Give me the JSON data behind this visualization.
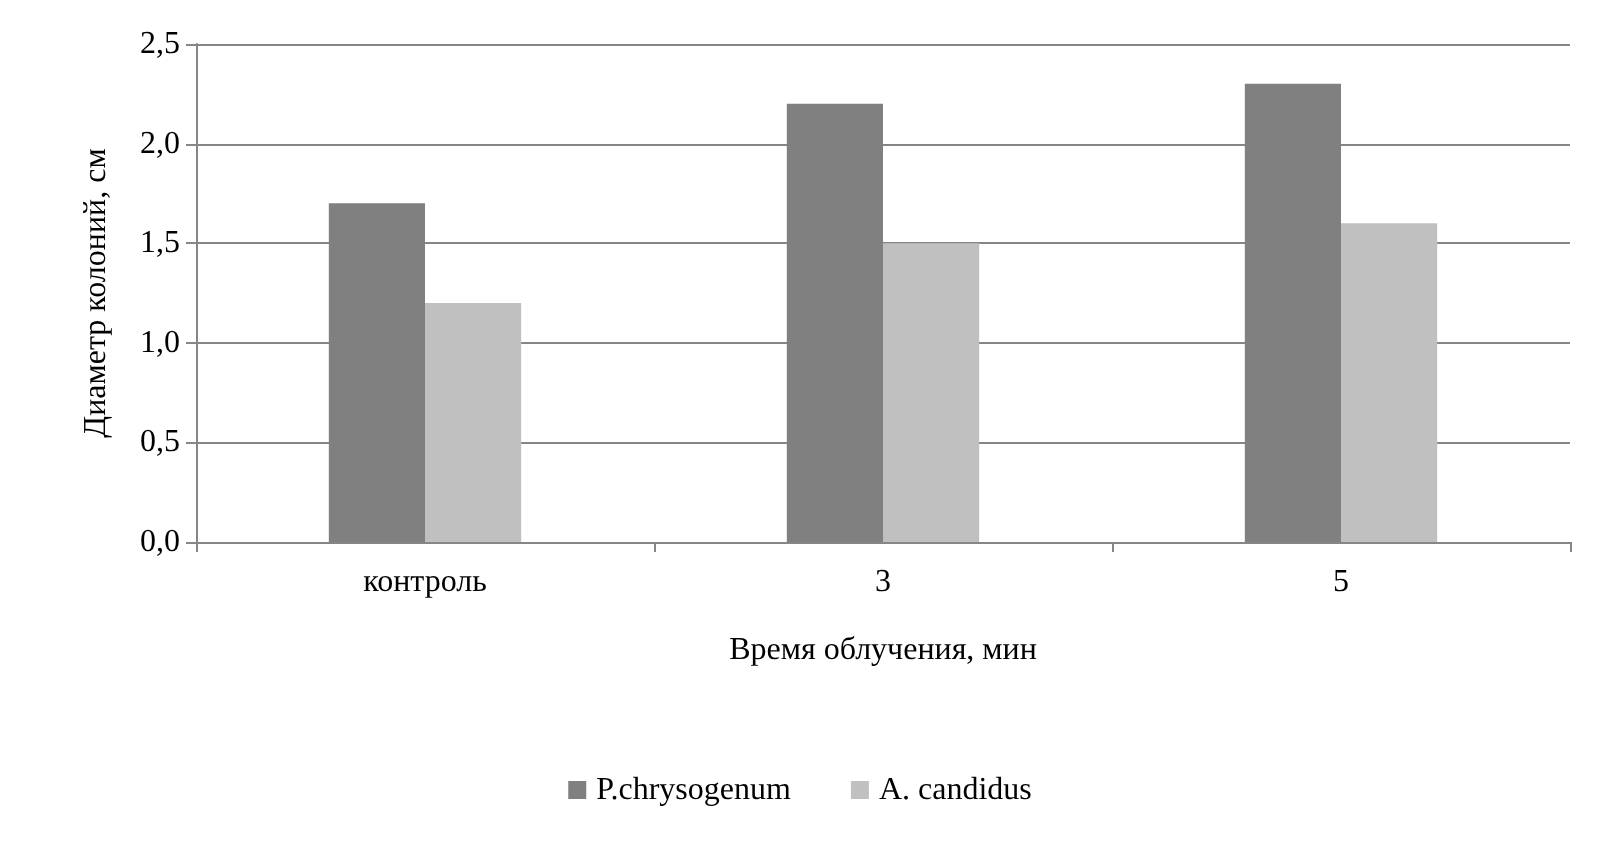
{
  "chart_data": {
    "type": "bar",
    "xlabel": "Время облучения, мин",
    "ylabel": "Диаметр колоний, см",
    "categories": [
      "контроль",
      "3",
      "5"
    ],
    "series": [
      {
        "name": "P.chrysogenum",
        "color": "#808080",
        "values": [
          1.7,
          2.2,
          2.3
        ]
      },
      {
        "name": "A. candidus",
        "color": "#c0c0c0",
        "values": [
          1.2,
          1.5,
          1.6
        ]
      }
    ],
    "ylim": [
      0,
      2.5
    ],
    "yticks": [
      {
        "value": 0,
        "label": "0,0"
      },
      {
        "value": 0.5,
        "label": "0,5"
      },
      {
        "value": 1,
        "label": "1,0"
      },
      {
        "value": 1.5,
        "label": "1,5"
      },
      {
        "value": 2,
        "label": "2,0"
      },
      {
        "value": 2.5,
        "label": "2,5"
      }
    ],
    "grid": "y",
    "legend": "bottom"
  }
}
